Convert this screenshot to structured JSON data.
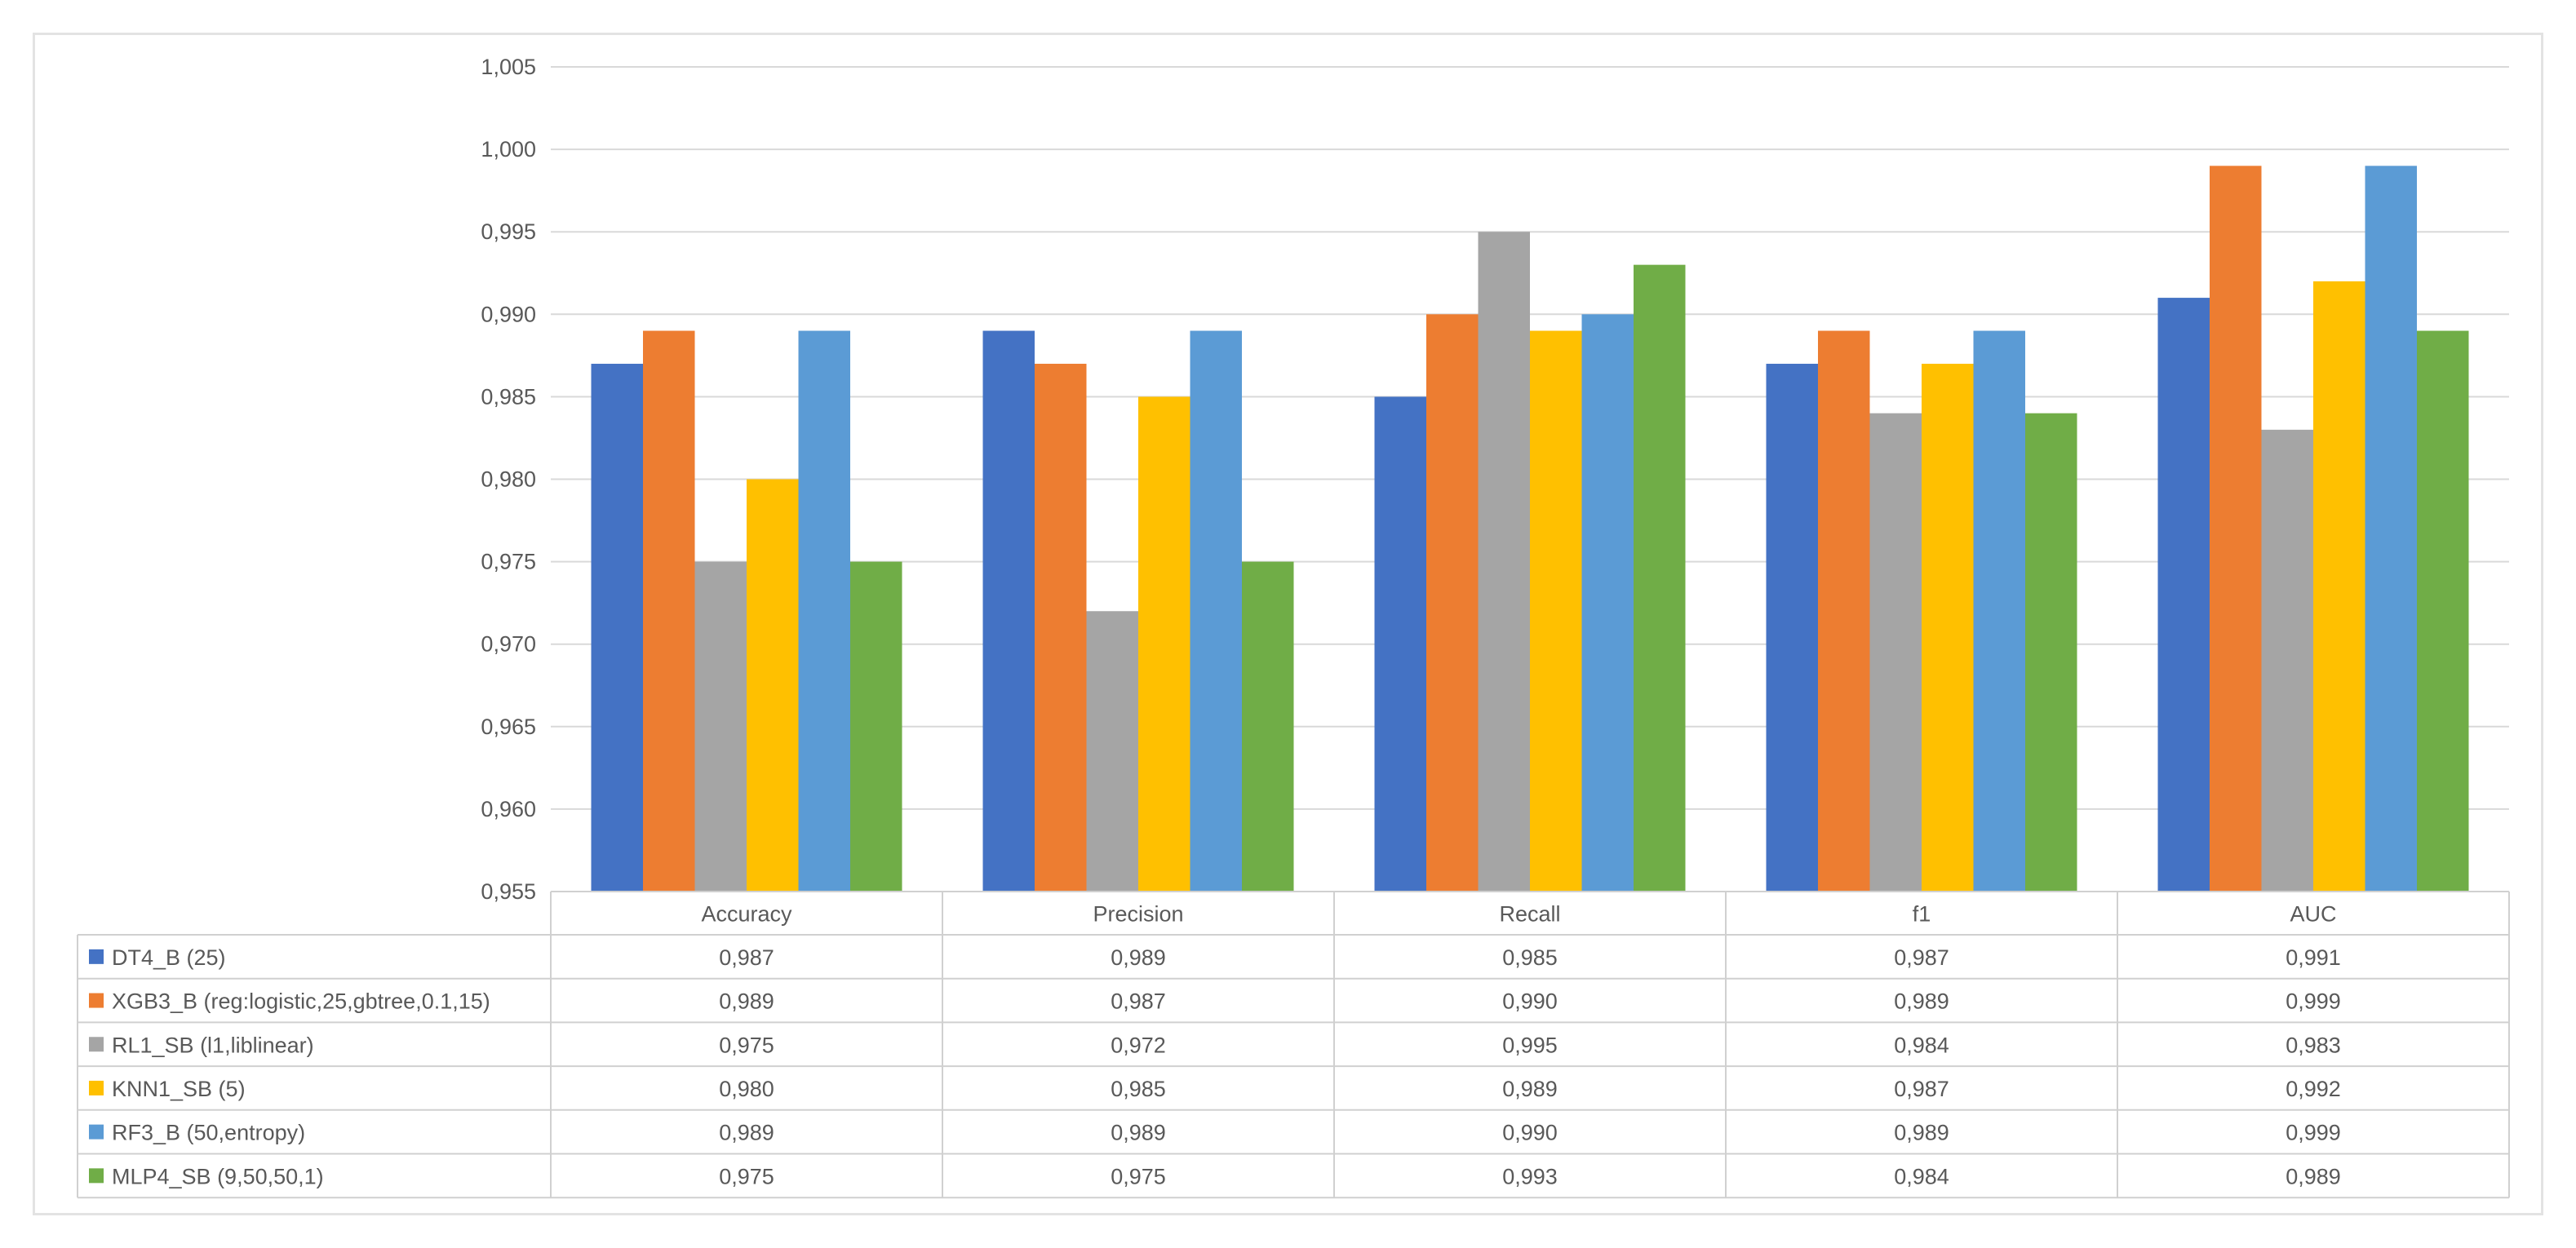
{
  "chart_data": {
    "type": "bar",
    "title": "",
    "xlabel": "",
    "ylabel": "",
    "ylim": [
      0.955,
      1.005
    ],
    "ytick_step": 0.005,
    "ytick_labels": [
      "0,955",
      "0,960",
      "0,965",
      "0,970",
      "0,975",
      "0,980",
      "0,985",
      "0,990",
      "0,995",
      "1,000",
      "1,005"
    ],
    "grid": true,
    "legend": "data-table-left",
    "categories": [
      "Accuracy",
      "Precision",
      "Recall",
      "f1",
      "AUC"
    ],
    "series": [
      {
        "name": "DT4_B (25)",
        "color": "#4472c4",
        "values": [
          0.987,
          0.989,
          0.985,
          0.987,
          0.991
        ],
        "labels": [
          "0,987",
          "0,989",
          "0,985",
          "0,987",
          "0,991"
        ]
      },
      {
        "name": "XGB3_B (reg:logistic,25,gbtree,0.1,15)",
        "color": "#ed7d31",
        "values": [
          0.989,
          0.987,
          0.99,
          0.989,
          0.999
        ],
        "labels": [
          "0,989",
          "0,987",
          "0,990",
          "0,989",
          "0,999"
        ]
      },
      {
        "name": "RL1_SB (l1,liblinear)",
        "color": "#a5a5a5",
        "values": [
          0.975,
          0.972,
          0.995,
          0.984,
          0.983
        ],
        "labels": [
          "0,975",
          "0,972",
          "0,995",
          "0,984",
          "0,983"
        ]
      },
      {
        "name": "KNN1_SB (5)",
        "color": "#ffc000",
        "values": [
          0.98,
          0.985,
          0.989,
          0.987,
          0.992
        ],
        "labels": [
          "0,980",
          "0,985",
          "0,989",
          "0,987",
          "0,992"
        ]
      },
      {
        "name": "RF3_B (50,entropy)",
        "color": "#5b9bd5",
        "values": [
          0.989,
          0.989,
          0.99,
          0.989,
          0.999
        ],
        "labels": [
          "0,989",
          "0,989",
          "0,990",
          "0,989",
          "0,999"
        ]
      },
      {
        "name": "MLP4_SB (9,50,50,1)",
        "color": "#70ad47",
        "values": [
          0.975,
          0.975,
          0.993,
          0.984,
          0.989
        ],
        "labels": [
          "0,975",
          "0,975",
          "0,993",
          "0,984",
          "0,989"
        ]
      }
    ]
  }
}
